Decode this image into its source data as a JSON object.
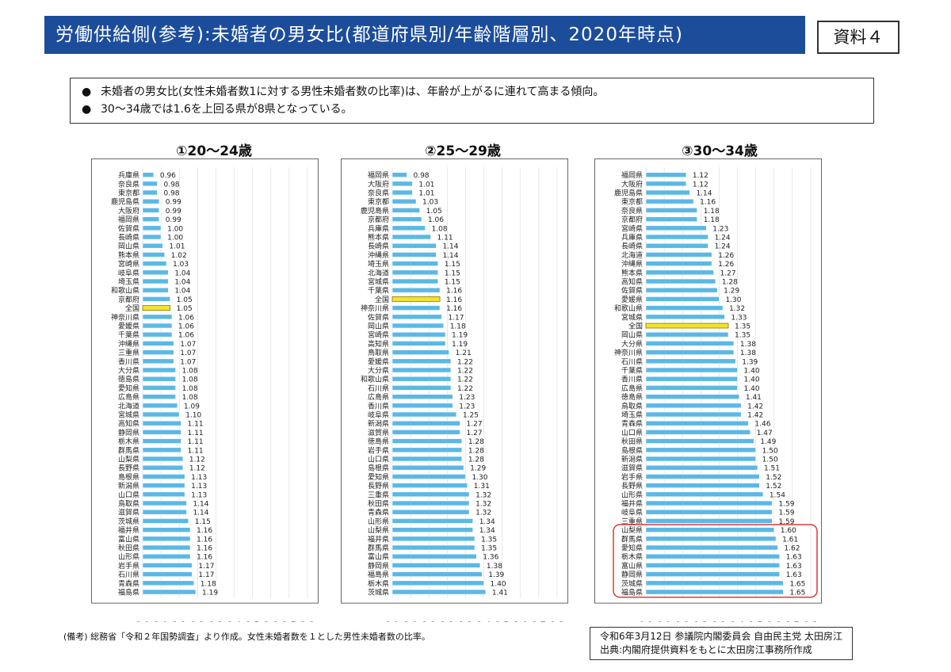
{
  "header": {
    "title": "労働供給側(参考):未婚者の男女比(都道府県別/年齢階層別、2020年時点)",
    "ref_label": "資料４"
  },
  "summary": {
    "bullet_icon": "bullet-icon",
    "items": [
      "未婚者の男女比(女性未婚者数1に対する男性未婚者数の比率)は、年齢が上がるに連れて高まる傾向。",
      "30～34歳では1.6を上回る県が8県となっている。"
    ]
  },
  "colors": {
    "title_bg": "#1c4d9b",
    "bar": "#5bb8e6",
    "bar_national": "#f2e32b",
    "highlight_border": "#d83a3a"
  },
  "chart_data": [
    {
      "type": "bar",
      "orientation": "horizontal",
      "title": "①20～24歳",
      "xlim": [
        0.9,
        1.8
      ],
      "xticks": [
        "0.9",
        "1.0",
        "1.1",
        "1.2",
        "1.3",
        "1.4",
        "1.5",
        "1.6",
        "1.7",
        "1.8"
      ],
      "highlight_category": "全国",
      "categories": [
        "兵庫県",
        "奈良県",
        "東京都",
        "鹿児島県",
        "大阪府",
        "福岡県",
        "佐賀県",
        "長崎県",
        "岡山県",
        "熊本県",
        "宮崎県",
        "岐阜県",
        "埼玉県",
        "和歌山県",
        "京都府",
        "全国",
        "神奈川県",
        "愛媛県",
        "千葉県",
        "沖縄県",
        "三重県",
        "香川県",
        "大分県",
        "徳島県",
        "愛知県",
        "広島県",
        "北海道",
        "宮城県",
        "高知県",
        "静岡県",
        "栃木県",
        "群馬県",
        "山梨県",
        "長野県",
        "島根県",
        "新潟県",
        "山口県",
        "鳥取県",
        "滋賀県",
        "茨城県",
        "福井県",
        "富山県",
        "秋田県",
        "山形県",
        "岩手県",
        "石川県",
        "青森県",
        "福島県"
      ],
      "values": [
        0.96,
        0.98,
        0.98,
        0.99,
        0.99,
        0.99,
        1.0,
        1.0,
        1.01,
        1.02,
        1.03,
        1.04,
        1.04,
        1.04,
        1.05,
        1.05,
        1.06,
        1.06,
        1.06,
        1.07,
        1.07,
        1.07,
        1.08,
        1.08,
        1.08,
        1.08,
        1.09,
        1.1,
        1.11,
        1.11,
        1.11,
        1.11,
        1.12,
        1.12,
        1.13,
        1.13,
        1.13,
        1.14,
        1.14,
        1.15,
        1.16,
        1.16,
        1.16,
        1.16,
        1.17,
        1.17,
        1.18,
        1.19
      ],
      "value_labels": [
        "0.96",
        "0.98",
        "0.98",
        "0.99",
        "0.99",
        "0.99",
        "1.00",
        "1.00",
        "1.01",
        "1.02",
        "1.03",
        "1.04",
        "1.04",
        "1.04",
        "1.05",
        "1.05",
        "1.06",
        "1.06",
        "1.06",
        "1.07",
        "1.07",
        "1.07",
        "1.08",
        "1.08",
        "1.08",
        "1.08",
        "1.09",
        "1.10",
        "1.11",
        "1.11",
        "1.11",
        "1.11",
        "1.12",
        "1.12",
        "1.13",
        "1.13",
        "1.13",
        "1.14",
        "1.14",
        "1.15",
        "1.16",
        "1.16",
        "1.16",
        "1.16",
        "1.17",
        "1.17",
        "1.18",
        "1.19"
      ]
    },
    {
      "type": "bar",
      "orientation": "horizontal",
      "title": "②25～29歳",
      "xlim": [
        0.9,
        1.8
      ],
      "xticks": [
        "0.9",
        "1.0",
        "1.1",
        "1.2",
        "1.3",
        "1.4",
        "1.5",
        "1.6",
        "1.7",
        "1.8"
      ],
      "highlight_category": "全国",
      "categories": [
        "福岡県",
        "大阪府",
        "奈良県",
        "東京都",
        "鹿児島県",
        "京都府",
        "兵庫県",
        "熊本県",
        "長崎県",
        "沖縄県",
        "埼玉県",
        "北海道",
        "宮城県",
        "千葉県",
        "全国",
        "神奈川県",
        "佐賀県",
        "岡山県",
        "宮崎県",
        "高知県",
        "鳥取県",
        "愛媛県",
        "大分県",
        "和歌山県",
        "石川県",
        "広島県",
        "香川県",
        "岐阜県",
        "新潟県",
        "滋賀県",
        "徳島県",
        "岩手県",
        "山口県",
        "島根県",
        "愛知県",
        "長野県",
        "三重県",
        "秋田県",
        "青森県",
        "山形県",
        "山梨県",
        "福井県",
        "群馬県",
        "富山県",
        "静岡県",
        "福島県",
        "栃木県",
        "茨城県"
      ],
      "values": [
        0.98,
        1.01,
        1.01,
        1.03,
        1.05,
        1.06,
        1.08,
        1.11,
        1.14,
        1.14,
        1.15,
        1.15,
        1.15,
        1.16,
        1.16,
        1.16,
        1.17,
        1.18,
        1.19,
        1.19,
        1.21,
        1.22,
        1.22,
        1.22,
        1.22,
        1.23,
        1.23,
        1.25,
        1.27,
        1.27,
        1.28,
        1.28,
        1.28,
        1.29,
        1.3,
        1.31,
        1.32,
        1.32,
        1.32,
        1.34,
        1.34,
        1.35,
        1.35,
        1.36,
        1.38,
        1.39,
        1.4,
        1.41
      ],
      "value_labels": [
        "0.98",
        "1.01",
        "1.01",
        "1.03",
        "1.05",
        "1.06",
        "1.08",
        "1.11",
        "1.14",
        "1.14",
        "1.15",
        "1.15",
        "1.15",
        "1.16",
        "1.16",
        "1.16",
        "1.17",
        "1.18",
        "1.19",
        "1.19",
        "1.21",
        "1.22",
        "1.22",
        "1.22",
        "1.22",
        "1.23",
        "1.23",
        "1.25",
        "1.27",
        "1.27",
        "1.28",
        "1.28",
        "1.28",
        "1.29",
        "1.30",
        "1.31",
        "1.32",
        "1.32",
        "1.32",
        "1.34",
        "1.34",
        "1.35",
        "1.35",
        "1.36",
        "1.38",
        "1.39",
        "1.40",
        "1.41"
      ]
    },
    {
      "type": "bar",
      "orientation": "horizontal",
      "title": "③30～34歳",
      "xlim": [
        0.9,
        1.8
      ],
      "xticks": [
        "0.9",
        "1.0",
        "1.1",
        "1.2",
        "1.3",
        "1.4",
        "1.5",
        "1.6",
        "1.7",
        "1.8"
      ],
      "highlight_category": "全国",
      "highlight_group": [
        "山梨県",
        "群馬県",
        "愛知県",
        "栃木県",
        "富山県",
        "静岡県",
        "茨城県",
        "福島県"
      ],
      "categories": [
        "福岡県",
        "大阪府",
        "鹿児島県",
        "東京都",
        "奈良県",
        "京都府",
        "宮崎県",
        "兵庫県",
        "長崎県",
        "北海道",
        "沖縄県",
        "熊本県",
        "高知県",
        "佐賀県",
        "愛媛県",
        "和歌山県",
        "宮城県",
        "全国",
        "岡山県",
        "大分県",
        "神奈川県",
        "石川県",
        "千葉県",
        "香川県",
        "広島県",
        "徳島県",
        "鳥取県",
        "埼玉県",
        "青森県",
        "山口県",
        "秋田県",
        "島根県",
        "新潟県",
        "滋賀県",
        "岩手県",
        "長野県",
        "山形県",
        "福井県",
        "岐阜県",
        "三重県",
        "山梨県",
        "群馬県",
        "愛知県",
        "栃木県",
        "富山県",
        "静岡県",
        "茨城県",
        "福島県"
      ],
      "values": [
        1.12,
        1.12,
        1.14,
        1.16,
        1.18,
        1.18,
        1.23,
        1.24,
        1.24,
        1.26,
        1.26,
        1.27,
        1.28,
        1.29,
        1.3,
        1.32,
        1.33,
        1.35,
        1.35,
        1.38,
        1.38,
        1.39,
        1.4,
        1.4,
        1.4,
        1.41,
        1.42,
        1.42,
        1.46,
        1.47,
        1.49,
        1.5,
        1.5,
        1.51,
        1.52,
        1.52,
        1.54,
        1.59,
        1.59,
        1.59,
        1.6,
        1.61,
        1.62,
        1.63,
        1.63,
        1.63,
        1.65,
        1.65
      ],
      "value_labels": [
        "1.12",
        "1.12",
        "1.14",
        "1.16",
        "1.18",
        "1.18",
        "1.23",
        "1.24",
        "1.24",
        "1.26",
        "1.26",
        "1.27",
        "1.28",
        "1.29",
        "1.30",
        "1.32",
        "1.33",
        "1.35",
        "1.35",
        "1.38",
        "1.38",
        "1.39",
        "1.40",
        "1.40",
        "1.40",
        "1.41",
        "1.42",
        "1.42",
        "1.46",
        "1.47",
        "1.49",
        "1.50",
        "1.50",
        "1.51",
        "1.52",
        "1.52",
        "1.54",
        "1.59",
        "1.59",
        "1.59",
        "1.60",
        "1.61",
        "1.62",
        "1.63",
        "1.63",
        "1.63",
        "1.65",
        "1.65"
      ]
    }
  ],
  "footer": {
    "note": "(備考) 総務省「令和２年国勢調査」より作成。女性未婚者数を１とした男性未婚者数の比率。",
    "credit_line1": "令和6年3月12日 参議院内閣委員会 自由民主党 太田房江",
    "credit_line2": "出典:内閣府提供資料をもとに太田房江事務所作成"
  }
}
